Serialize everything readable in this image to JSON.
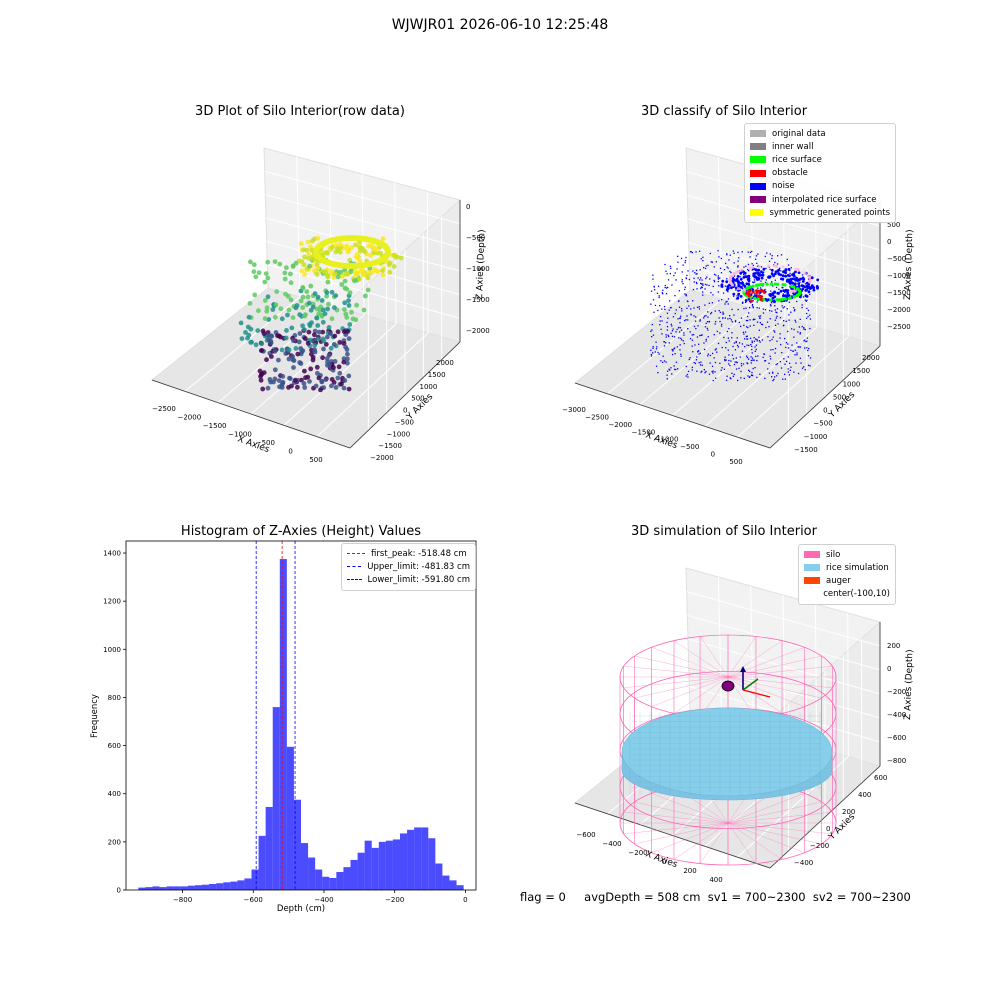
{
  "suptitle": "WJWJR01 2026-06-10 12:25:48",
  "panels": {
    "raw": {
      "title": "3D Plot of Silo Interior(row data)",
      "x_label": "X Axies",
      "y_label": "Y Axies",
      "z_label": "Z Axies (Depth)",
      "x_ticks": [
        "−2500",
        "−2000",
        "−1500",
        "−1000",
        "−500",
        "0",
        "500"
      ],
      "y_ticks": [
        "−2000",
        "−1500",
        "−1000",
        "−500",
        "0",
        "500",
        "1000",
        "1500",
        "2000"
      ],
      "z_ticks": [
        "0",
        "−500",
        "−1000",
        "−1500",
        "−2000"
      ]
    },
    "classify": {
      "title": "3D classify of Silo Interior",
      "x_label": "X Axies",
      "y_label": "Y Axies",
      "z_label": "Z Axies (Depth)",
      "x_ticks": [
        "−3000",
        "−2500",
        "−2000",
        "−1500",
        "−1000",
        "−500",
        "0",
        "500"
      ],
      "y_ticks": [
        "−1500",
        "−1000",
        "−500",
        "0",
        "500",
        "1000",
        "1500",
        "2000"
      ],
      "z_ticks": [
        "500",
        "0",
        "−500",
        "−1000",
        "−1500",
        "−2000",
        "−2500"
      ],
      "legend": [
        {
          "label": "original data",
          "color": "#b0b0b0"
        },
        {
          "label": "inner wall",
          "color": "#808080"
        },
        {
          "label": "rice surface",
          "color": "#00ff00"
        },
        {
          "label": "obstacle",
          "color": "#ff0000"
        },
        {
          "label": "noise",
          "color": "#0000ff"
        },
        {
          "label": "interpolated rice surface",
          "color": "#800080"
        },
        {
          "label": "symmetric generated points",
          "color": "#ffff00"
        }
      ]
    },
    "simulation": {
      "title": "3D simulation of Silo Interior",
      "x_label": "X Axies",
      "y_label": "Y Axies",
      "z_label": "Z Axies (Depth)",
      "x_ticks": [
        "−600",
        "−400",
        "−200",
        "0",
        "200",
        "400"
      ],
      "y_ticks": [
        "−400",
        "−200",
        "0",
        "200",
        "400",
        "600"
      ],
      "z_ticks": [
        "200",
        "0",
        "−200",
        "−400",
        "−600",
        "−800"
      ],
      "legend": [
        {
          "label": "silo",
          "color": "#ff69b4"
        },
        {
          "label": "rice simulation",
          "color": "#87ceeb"
        },
        {
          "label": "auger",
          "color": "#ff4500"
        },
        {
          "label": "center(-100,10)",
          "color": ""
        }
      ]
    }
  },
  "chart_data": {
    "type": "bar",
    "title": "Histogram of Z-Axies (Height) Values",
    "xlabel": "Depth (cm)",
    "ylabel": "Frequency",
    "xlim": [
      -960,
      30
    ],
    "ylim": [
      0,
      1450
    ],
    "x_ticks": [
      -800,
      -600,
      -400,
      -200,
      0
    ],
    "x_tick_labels": [
      "−800",
      "−600",
      "−400",
      "−200",
      "0"
    ],
    "y_ticks": [
      0,
      200,
      400,
      600,
      800,
      1000,
      1200,
      1400
    ],
    "grid": false,
    "legend_position": "top-right",
    "bar_color": "#0000ff",
    "bin_edges": [
      -925,
      -905,
      -885,
      -865,
      -845,
      -825,
      -805,
      -785,
      -765,
      -745,
      -725,
      -705,
      -685,
      -665,
      -645,
      -625,
      -605,
      -585,
      -565,
      -545,
      -525,
      -505,
      -485,
      -465,
      -445,
      -425,
      -405,
      -385,
      -365,
      -345,
      -325,
      -305,
      -285,
      -265,
      -245,
      -225,
      -205,
      -185,
      -165,
      -145,
      -125,
      -105,
      -85,
      -65,
      -45,
      -25,
      -5
    ],
    "values": [
      10,
      12,
      15,
      12,
      15,
      15,
      15,
      18,
      20,
      22,
      25,
      28,
      32,
      35,
      40,
      48,
      85,
      225,
      345,
      760,
      1375,
      595,
      375,
      195,
      135,
      85,
      55,
      50,
      75,
      95,
      125,
      155,
      205,
      175,
      200,
      205,
      210,
      235,
      250,
      260,
      260,
      215,
      110,
      60,
      40,
      20
    ],
    "reference_lines": [
      {
        "label": "first_peak: -518.48 cm",
        "x": -518.48,
        "color": "#ff0000"
      },
      {
        "label": "Upper_limit: -481.83 cm",
        "x": -481.83,
        "color": "#0000ff"
      },
      {
        "label": "Lower_limit: -591.80 cm",
        "x": -591.8,
        "color": "#0000ff"
      }
    ]
  },
  "footer": {
    "flag": "flag = 0",
    "stats": "avgDepth = 508 cm  sv1 = 700~2300  sv2 = 700~2300"
  }
}
